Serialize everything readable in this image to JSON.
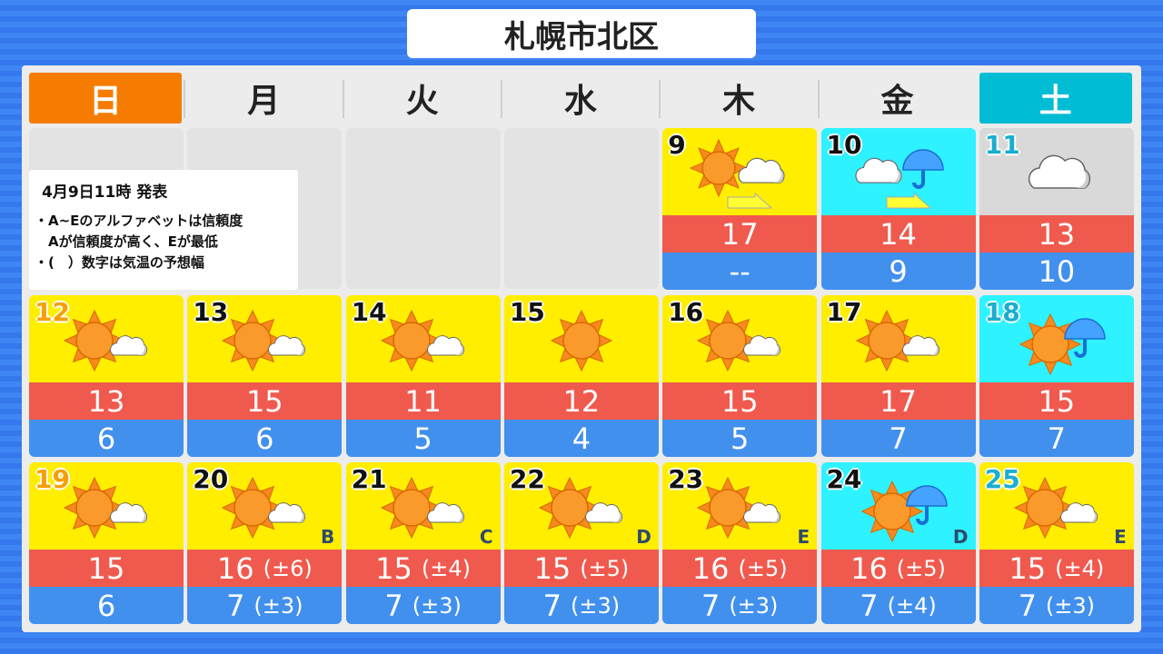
{
  "title": "札幌市北区",
  "weekdays": [
    "日",
    "月",
    "火",
    "水",
    "木",
    "金",
    "土"
  ],
  "note": {
    "issued": "4月9日11時 発表",
    "lines": [
      "・A~Eのアルファベットは信頼度",
      "　Aが信頼度が高く、Eが最低",
      "・(　）数字は気温の予想幅"
    ]
  },
  "colors": {
    "sunny_bg": "#ffee00",
    "rain_bg": "#2ef2ff",
    "cloudy_bg": "#d9d9d9",
    "high": "#f05a4e",
    "low": "#4290ee",
    "sunday": "#f57c00",
    "saturday": "#00bcd4"
  },
  "days": [
    {
      "date": "9",
      "weather": "sun-then-cloud",
      "high": "17",
      "low": "--"
    },
    {
      "date": "10",
      "weather": "cloud-then-rain",
      "high": "14",
      "low": "9"
    },
    {
      "date": "11",
      "weather": "cloud",
      "high": "13",
      "low": "10"
    },
    {
      "date": "12",
      "weather": "sun-cloud",
      "high": "13",
      "low": "6"
    },
    {
      "date": "13",
      "weather": "sun-cloud",
      "high": "15",
      "low": "6"
    },
    {
      "date": "14",
      "weather": "sun-cloud",
      "high": "11",
      "low": "5"
    },
    {
      "date": "15",
      "weather": "sun",
      "high": "12",
      "low": "4"
    },
    {
      "date": "16",
      "weather": "sun-cloud",
      "high": "15",
      "low": "5"
    },
    {
      "date": "17",
      "weather": "sun-cloud",
      "high": "17",
      "low": "7"
    },
    {
      "date": "18",
      "weather": "sun-rain",
      "high": "15",
      "low": "7"
    },
    {
      "date": "19",
      "weather": "sun-cloud",
      "high": "15",
      "low": "6"
    },
    {
      "date": "20",
      "weather": "sun-cloud",
      "high": "16",
      "high_range": "(±6)",
      "low": "7",
      "low_range": "(±3)",
      "reliability": "B"
    },
    {
      "date": "21",
      "weather": "sun-cloud",
      "high": "15",
      "high_range": "(±4)",
      "low": "7",
      "low_range": "(±3)",
      "reliability": "C"
    },
    {
      "date": "22",
      "weather": "sun-cloud",
      "high": "15",
      "high_range": "(±5)",
      "low": "7",
      "low_range": "(±3)",
      "reliability": "D"
    },
    {
      "date": "23",
      "weather": "sun-cloud",
      "high": "16",
      "high_range": "(±5)",
      "low": "7",
      "low_range": "(±3)",
      "reliability": "E"
    },
    {
      "date": "24",
      "weather": "sun-rain",
      "high": "16",
      "high_range": "(±5)",
      "low": "7",
      "low_range": "(±4)",
      "reliability": "D"
    },
    {
      "date": "25",
      "weather": "sun-cloud",
      "high": "15",
      "high_range": "(±4)",
      "low": "7",
      "low_range": "(±3)",
      "reliability": "E"
    }
  ]
}
